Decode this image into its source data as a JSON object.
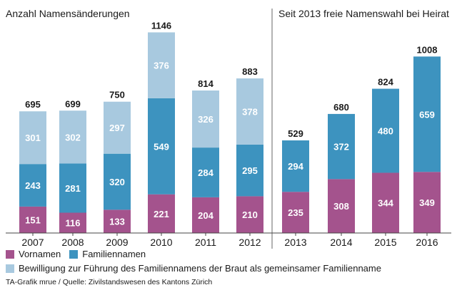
{
  "chart_data": {
    "type": "bar",
    "stacked": true,
    "title_left": "Anzahl Namensänderungen",
    "title_right": "Seit 2013 freie Namenswahl bei Heirat",
    "categories": [
      "2007",
      "2008",
      "2009",
      "2010",
      "2011",
      "2012",
      "2013",
      "2014",
      "2015",
      "2016"
    ],
    "totals": [
      695,
      699,
      750,
      1146,
      814,
      883,
      529,
      680,
      824,
      1008
    ],
    "series": [
      {
        "name": "Vornamen",
        "color": "#a4538d",
        "values": [
          151,
          116,
          133,
          221,
          204,
          210,
          235,
          308,
          344,
          349
        ]
      },
      {
        "name": "Familiennamen",
        "color": "#3d93bf",
        "values": [
          243,
          281,
          320,
          549,
          284,
          295,
          294,
          372,
          480,
          659
        ]
      },
      {
        "name": "Bewilligung zur Führung des Familiennamens der Braut als gemeinsamer Familienname",
        "color": "#a8c9df",
        "values": [
          301,
          302,
          297,
          376,
          326,
          378,
          null,
          null,
          null,
          null
        ]
      }
    ],
    "ylim": [
      0,
      1200
    ],
    "grid": false,
    "legend_position": "bottom-left"
  },
  "source": "TA-Grafik mrue / Quelle: Zivilstandswesen des Kantons Zürich"
}
